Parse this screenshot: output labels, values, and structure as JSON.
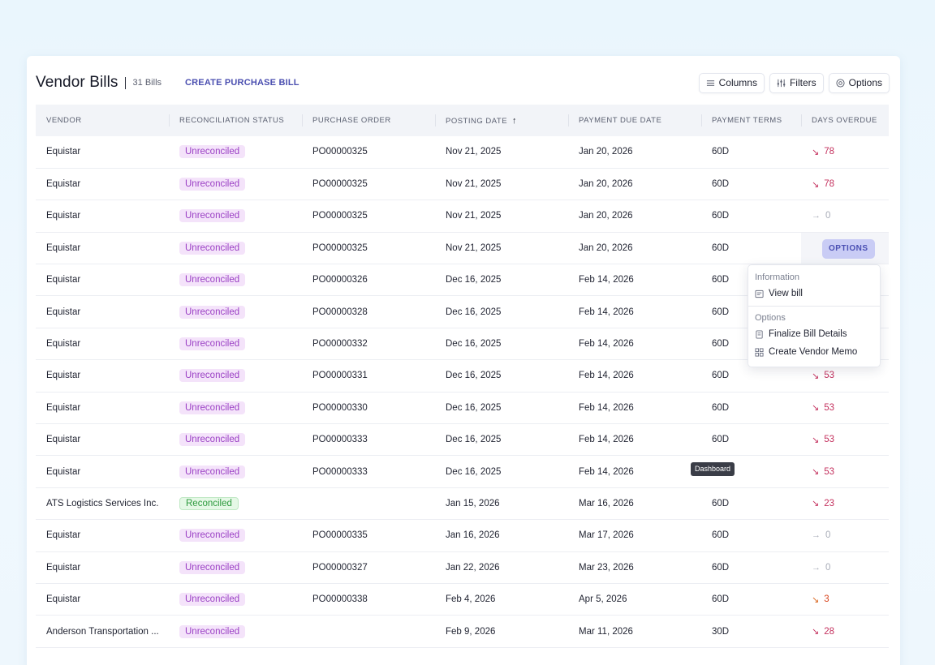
{
  "header": {
    "title": "Vendor Bills",
    "count": "31 Bills",
    "create_link": "CREATE PURCHASE BILL",
    "buttons": {
      "columns": "Columns",
      "filters": "Filters",
      "options": "Options"
    }
  },
  "table": {
    "columns": [
      "VENDOR",
      "RECONCILIATION STATUS",
      "PURCHASE ORDER",
      "POSTING DATE",
      "PAYMENT DUE DATE",
      "PAYMENT TERMS",
      "DAYS OVERDUE"
    ],
    "sort_indicator": "↑",
    "rows": [
      {
        "vendor": "Equistar",
        "status": "Unreconciled",
        "po": "PO00000325",
        "posting": "Nov 21, 2025",
        "due": "Jan 20, 2026",
        "terms": "60D",
        "overdue_arrow": "↘",
        "overdue": "78"
      },
      {
        "vendor": "Equistar",
        "status": "Unreconciled",
        "po": "PO00000325",
        "posting": "Nov 21, 2025",
        "due": "Jan 20, 2026",
        "terms": "60D",
        "overdue_arrow": "↘",
        "overdue": "78"
      },
      {
        "vendor": "Equistar",
        "status": "Unreconciled",
        "po": "PO00000325",
        "posting": "Nov 21, 2025",
        "due": "Jan 20, 2026",
        "terms": "60D",
        "overdue_arrow": "→",
        "overdue": "0"
      },
      {
        "vendor": "Equistar",
        "status": "Unreconciled",
        "po": "PO00000325",
        "posting": "Nov 21, 2025",
        "due": "Jan 20, 2026",
        "terms": "60D",
        "options_label": "OPTIONS"
      },
      {
        "vendor": "Equistar",
        "status": "Unreconciled",
        "po": "PO00000326",
        "posting": "Dec 16, 2025",
        "due": "Feb 14, 2026",
        "terms": "60D"
      },
      {
        "vendor": "Equistar",
        "status": "Unreconciled",
        "po": "PO00000328",
        "posting": "Dec 16, 2025",
        "due": "Feb 14, 2026",
        "terms": "60D"
      },
      {
        "vendor": "Equistar",
        "status": "Unreconciled",
        "po": "PO00000332",
        "posting": "Dec 16, 2025",
        "due": "Feb 14, 2026",
        "terms": "60D"
      },
      {
        "vendor": "Equistar",
        "status": "Unreconciled",
        "po": "PO00000331",
        "posting": "Dec 16, 2025",
        "due": "Feb 14, 2026",
        "terms": "60D",
        "overdue_arrow": "↘",
        "overdue": "53"
      },
      {
        "vendor": "Equistar",
        "status": "Unreconciled",
        "po": "PO00000330",
        "posting": "Dec 16, 2025",
        "due": "Feb 14, 2026",
        "terms": "60D",
        "overdue_arrow": "↘",
        "overdue": "53"
      },
      {
        "vendor": "Equistar",
        "status": "Unreconciled",
        "po": "PO00000333",
        "posting": "Dec 16, 2025",
        "due": "Feb 14, 2026",
        "terms": "60D",
        "overdue_arrow": "↘",
        "overdue": "53"
      },
      {
        "vendor": "Equistar",
        "status": "Unreconciled",
        "po": "PO00000333",
        "posting": "Dec 16, 2025",
        "due": "Feb 14, 2026",
        "terms": "",
        "overdue_arrow": "↘",
        "overdue": "53"
      },
      {
        "vendor": "ATS Logistics Services Inc.",
        "status": "Reconciled",
        "po": "",
        "posting": "Jan 15, 2026",
        "due": "Mar 16, 2026",
        "terms": "60D",
        "overdue_arrow": "↘",
        "overdue": "23"
      },
      {
        "vendor": "Equistar",
        "status": "Unreconciled",
        "po": "PO00000335",
        "posting": "Jan 16, 2026",
        "due": "Mar 17, 2026",
        "terms": "60D",
        "overdue_arrow": "→",
        "overdue": "0"
      },
      {
        "vendor": "Equistar",
        "status": "Unreconciled",
        "po": "PO00000327",
        "posting": "Jan 22, 2026",
        "due": "Mar 23, 2026",
        "terms": "60D",
        "overdue_arrow": "→",
        "overdue": "0"
      },
      {
        "vendor": "Equistar",
        "status": "Unreconciled",
        "po": "PO00000338",
        "posting": "Feb 4, 2026",
        "due": "Apr 5, 2026",
        "terms": "60D",
        "overdue_arrow": "↘",
        "overdue": "3"
      },
      {
        "vendor": "Anderson Transportation ...",
        "status": "Unreconciled",
        "po": "",
        "posting": "Feb 9, 2026",
        "due": "Mar 11, 2026",
        "terms": "30D",
        "overdue_arrow": "↘",
        "overdue": "28"
      }
    ]
  },
  "menu": {
    "section1": "Information",
    "view_bill": "View bill",
    "section2": "Options",
    "finalize": "Finalize Bill Details",
    "vendor_memo": "Create Vendor Memo"
  },
  "tooltip": "Dashboard",
  "colors": {
    "accent": "#4b4fb0",
    "overdue_red": "#c4315e",
    "overdue_orange": "#d9461f"
  }
}
